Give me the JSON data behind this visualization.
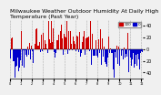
{
  "title": "Milwaukee Weather Outdoor Humidity\nAt Daily High\nTemperature\n(Past Year)",
  "n_bars": 365,
  "seed": 42,
  "background_color": "#f0f0f0",
  "bar_color_high": "#cc0000",
  "bar_color_low": "#0000cc",
  "ylim": [
    -50,
    50
  ],
  "yticks": [
    -40,
    -20,
    0,
    20,
    40
  ],
  "ytick_labels": [
    "40",
    "20",
    "0",
    "20",
    "40"
  ],
  "grid_color": "#aaaaaa",
  "legend_high_label": "100",
  "legend_low_label": "0",
  "title_fontsize": 4.5,
  "tick_fontsize": 3.5
}
